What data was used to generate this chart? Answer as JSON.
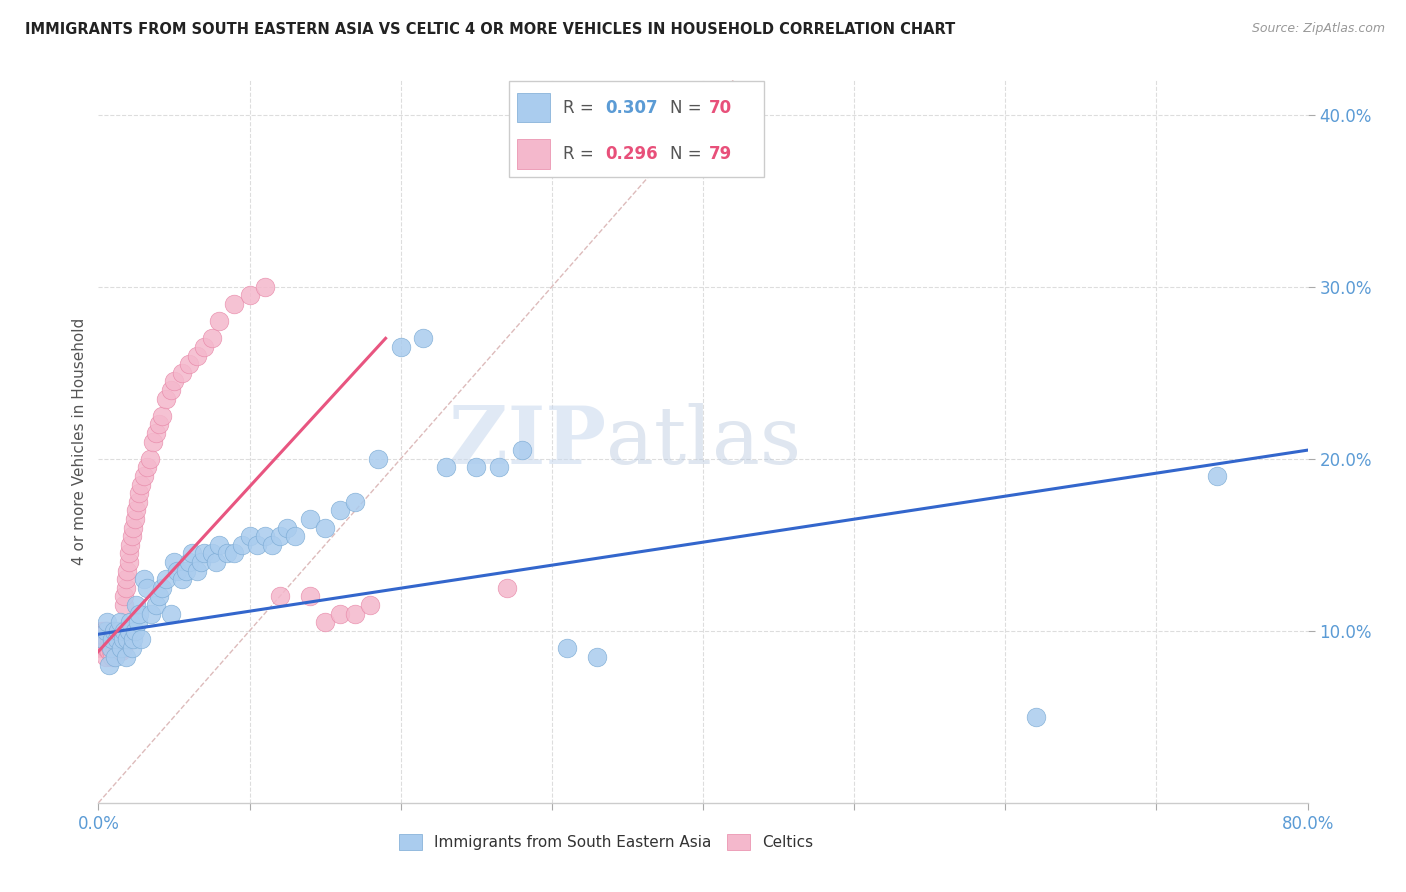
{
  "title": "IMMIGRANTS FROM SOUTH EASTERN ASIA VS CELTIC 4 OR MORE VEHICLES IN HOUSEHOLD CORRELATION CHART",
  "source": "Source: ZipAtlas.com",
  "ylabel": "4 or more Vehicles in Household",
  "series1_label": "Immigrants from South Eastern Asia",
  "series1_color": "#aaccee",
  "series1_edge": "#7aaad4",
  "series2_label": "Celtics",
  "series2_color": "#f4b8cc",
  "series2_edge": "#e888a8",
  "trendline1_color": "#3366cc",
  "trendline2_color": "#e85580",
  "diagonal_color": "#ddbbbb",
  "watermark_zip": "ZIP",
  "watermark_atlas": "atlas",
  "xlim": [
    0.0,
    0.8
  ],
  "ylim": [
    0.0,
    0.42
  ],
  "ytick_vals": [
    0.1,
    0.2,
    0.3,
    0.4
  ],
  "ytick_labels": [
    "10.0%",
    "20.0%",
    "30.0%",
    "40.0%"
  ],
  "xtick_vals": [
    0.0,
    0.8
  ],
  "xtick_labels": [
    "0.0%",
    "80.0%"
  ],
  "gridline_y": [
    0.1,
    0.2,
    0.3,
    0.4
  ],
  "gridline_x": [
    0.1,
    0.2,
    0.3,
    0.4,
    0.5,
    0.6,
    0.7
  ],
  "legend_R1": "0.307",
  "legend_N1": "70",
  "legend_R2": "0.296",
  "legend_N2": "79",
  "series1_x": [
    0.003,
    0.005,
    0.006,
    0.007,
    0.008,
    0.009,
    0.01,
    0.011,
    0.012,
    0.013,
    0.014,
    0.015,
    0.016,
    0.017,
    0.018,
    0.019,
    0.02,
    0.021,
    0.022,
    0.023,
    0.024,
    0.025,
    0.026,
    0.027,
    0.028,
    0.03,
    0.032,
    0.035,
    0.038,
    0.04,
    0.042,
    0.045,
    0.048,
    0.05,
    0.052,
    0.055,
    0.058,
    0.06,
    0.062,
    0.065,
    0.068,
    0.07,
    0.075,
    0.078,
    0.08,
    0.085,
    0.09,
    0.095,
    0.1,
    0.105,
    0.11,
    0.115,
    0.12,
    0.125,
    0.13,
    0.14,
    0.15,
    0.16,
    0.17,
    0.185,
    0.2,
    0.215,
    0.23,
    0.25,
    0.265,
    0.28,
    0.31,
    0.33,
    0.62,
    0.74
  ],
  "series1_y": [
    0.095,
    0.1,
    0.105,
    0.08,
    0.09,
    0.095,
    0.1,
    0.085,
    0.095,
    0.1,
    0.105,
    0.09,
    0.095,
    0.1,
    0.085,
    0.095,
    0.1,
    0.105,
    0.09,
    0.095,
    0.1,
    0.115,
    0.105,
    0.11,
    0.095,
    0.13,
    0.125,
    0.11,
    0.115,
    0.12,
    0.125,
    0.13,
    0.11,
    0.14,
    0.135,
    0.13,
    0.135,
    0.14,
    0.145,
    0.135,
    0.14,
    0.145,
    0.145,
    0.14,
    0.15,
    0.145,
    0.145,
    0.15,
    0.155,
    0.15,
    0.155,
    0.15,
    0.155,
    0.16,
    0.155,
    0.165,
    0.16,
    0.17,
    0.175,
    0.2,
    0.265,
    0.27,
    0.195,
    0.195,
    0.195,
    0.205,
    0.09,
    0.085,
    0.05,
    0.19
  ],
  "series2_x": [
    0.001,
    0.002,
    0.002,
    0.003,
    0.003,
    0.004,
    0.004,
    0.004,
    0.005,
    0.005,
    0.005,
    0.006,
    0.006,
    0.006,
    0.007,
    0.007,
    0.007,
    0.008,
    0.008,
    0.008,
    0.009,
    0.009,
    0.009,
    0.01,
    0.01,
    0.01,
    0.011,
    0.011,
    0.012,
    0.012,
    0.013,
    0.013,
    0.014,
    0.014,
    0.015,
    0.015,
    0.016,
    0.016,
    0.017,
    0.017,
    0.018,
    0.018,
    0.019,
    0.02,
    0.02,
    0.021,
    0.022,
    0.023,
    0.024,
    0.025,
    0.026,
    0.027,
    0.028,
    0.03,
    0.032,
    0.034,
    0.036,
    0.038,
    0.04,
    0.042,
    0.045,
    0.048,
    0.05,
    0.055,
    0.06,
    0.065,
    0.07,
    0.075,
    0.08,
    0.09,
    0.1,
    0.11,
    0.12,
    0.14,
    0.15,
    0.16,
    0.17,
    0.18,
    0.27
  ],
  "series2_y": [
    0.09,
    0.095,
    0.1,
    0.09,
    0.095,
    0.09,
    0.095,
    0.1,
    0.085,
    0.09,
    0.1,
    0.09,
    0.095,
    0.1,
    0.088,
    0.092,
    0.096,
    0.088,
    0.092,
    0.096,
    0.085,
    0.09,
    0.095,
    0.09,
    0.095,
    0.1,
    0.09,
    0.095,
    0.09,
    0.095,
    0.09,
    0.095,
    0.09,
    0.095,
    0.088,
    0.092,
    0.09,
    0.094,
    0.115,
    0.12,
    0.125,
    0.13,
    0.135,
    0.14,
    0.145,
    0.15,
    0.155,
    0.16,
    0.165,
    0.17,
    0.175,
    0.18,
    0.185,
    0.19,
    0.195,
    0.2,
    0.21,
    0.215,
    0.22,
    0.225,
    0.235,
    0.24,
    0.245,
    0.25,
    0.255,
    0.26,
    0.265,
    0.27,
    0.28,
    0.29,
    0.295,
    0.3,
    0.12,
    0.12,
    0.105,
    0.11,
    0.11,
    0.115,
    0.125
  ],
  "trendline1_x": [
    0.0,
    0.8
  ],
  "trendline1_y": [
    0.098,
    0.205
  ],
  "trendline2_x": [
    0.0,
    0.19
  ],
  "trendline2_y": [
    0.088,
    0.27
  ]
}
